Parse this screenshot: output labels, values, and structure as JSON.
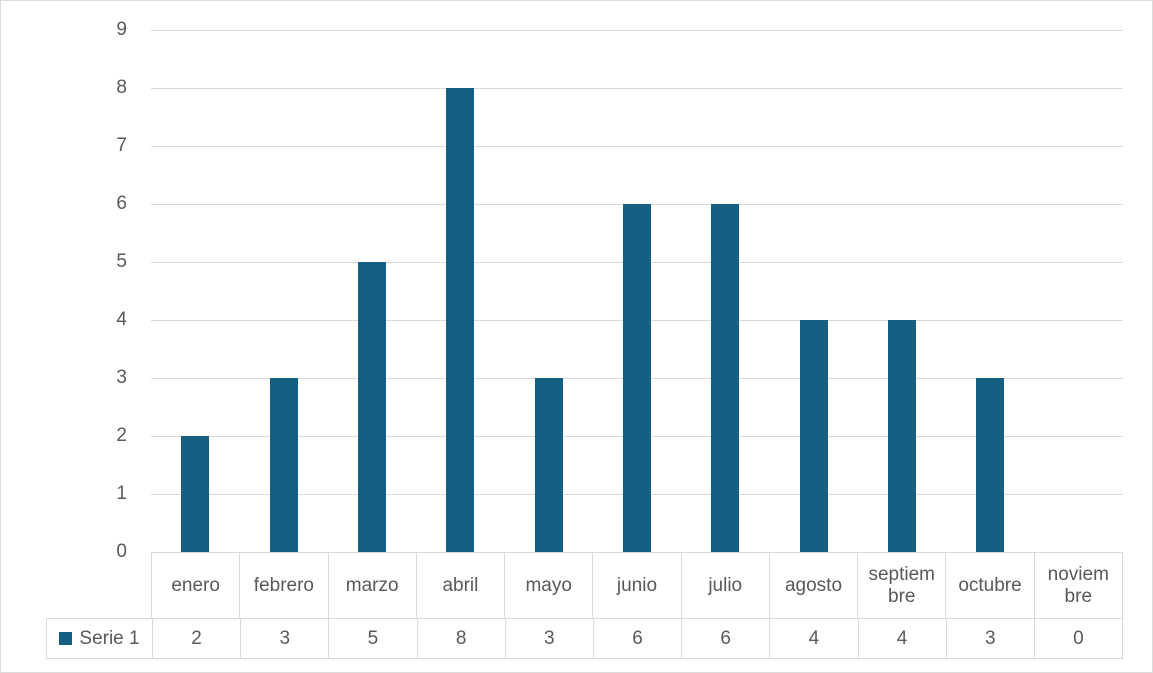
{
  "chart_data": {
    "type": "bar",
    "title": "",
    "categories": [
      "enero",
      "febrero",
      "marzo",
      "abril",
      "mayo",
      "junio",
      "julio",
      "agosto",
      "septiembre",
      "octubre",
      "noviembre"
    ],
    "x_tick_labels": [
      "enero",
      "febrero",
      "marzo",
      "abril",
      "mayo",
      "junio",
      "julio",
      "agosto",
      "septiem\nbre",
      "octubre",
      "noviem\nbre"
    ],
    "series": [
      {
        "name": "Serie 1",
        "values": [
          2,
          3,
          5,
          8,
          3,
          6,
          6,
          4,
          4,
          3,
          0
        ],
        "color": "#156082"
      }
    ],
    "ylim": [
      0,
      9
    ],
    "y_ticks": [
      0,
      1,
      2,
      3,
      4,
      5,
      6,
      7,
      8,
      9
    ],
    "xlabel": "",
    "ylabel": "",
    "grid": true,
    "legend_position": "data-table-left",
    "data_table": true
  },
  "colors": {
    "bar": "#156082",
    "gridline": "#D9D9D9",
    "table_border": "#D9D9D9",
    "text": "#595959",
    "background": "#FFFFFF",
    "figure_border": "#DCDCDC"
  }
}
